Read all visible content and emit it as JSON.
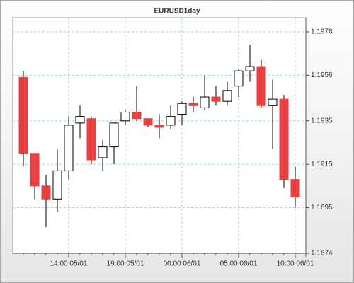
{
  "chart_data": {
    "type": "candlestick",
    "title": "EURUSD1day",
    "categories": [
      null,
      null,
      null,
      null,
      "14:00 05/01",
      null,
      null,
      null,
      null,
      "19:00 05/01",
      null,
      null,
      null,
      null,
      "00:00 06/01",
      null,
      null,
      null,
      null,
      "05:00 06/01",
      null,
      null,
      null,
      null,
      "10:00 06/01"
    ],
    "open": [
      1.1955,
      1.192,
      1.1905,
      1.1899,
      1.1912,
      1.1934,
      1.1936,
      1.1918,
      1.1923,
      1.1935,
      1.1939,
      1.1936,
      1.1933,
      1.1933,
      1.1938,
      1.1943,
      1.1941,
      1.1946,
      1.1944,
      1.1951,
      1.1958,
      1.196,
      1.1942,
      1.1945,
      1.1908
    ],
    "high": [
      1.1958,
      1.192,
      1.191,
      1.1922,
      1.1937,
      1.1942,
      1.1937,
      1.1926,
      1.1934,
      1.194,
      1.1951,
      1.1936,
      1.1938,
      1.1942,
      1.1944,
      1.1946,
      1.1956,
      1.1951,
      1.1953,
      1.1959,
      1.197,
      1.1963,
      1.1954,
      1.1947,
      1.1914
    ],
    "low": [
      1.1914,
      1.1899,
      1.1886,
      1.1893,
      1.1908,
      1.1927,
      1.1915,
      1.1912,
      1.1915,
      1.1933,
      1.1935,
      1.1932,
      1.1927,
      1.1931,
      1.1933,
      1.1939,
      1.194,
      1.1942,
      1.1942,
      1.1946,
      1.1953,
      1.1941,
      1.1922,
      1.1904,
      1.1895
    ],
    "close": [
      1.192,
      1.1905,
      1.1899,
      1.1912,
      1.1933,
      1.1937,
      1.1917,
      1.1923,
      1.1934,
      1.1939,
      1.1936,
      1.1933,
      1.1932,
      1.1937,
      1.1943,
      1.1942,
      1.1946,
      1.1944,
      1.1949,
      1.1958,
      1.196,
      1.1942,
      1.1945,
      1.1908,
      1.19
    ],
    "up_color": "#ffffff",
    "down_color": "#e84040",
    "ylim": [
      1.1874,
      1.19825
    ],
    "yticks": [
      1.1874,
      1.1895,
      1.1915,
      1.1935,
      1.1956,
      1.1976
    ],
    "grid": true
  }
}
